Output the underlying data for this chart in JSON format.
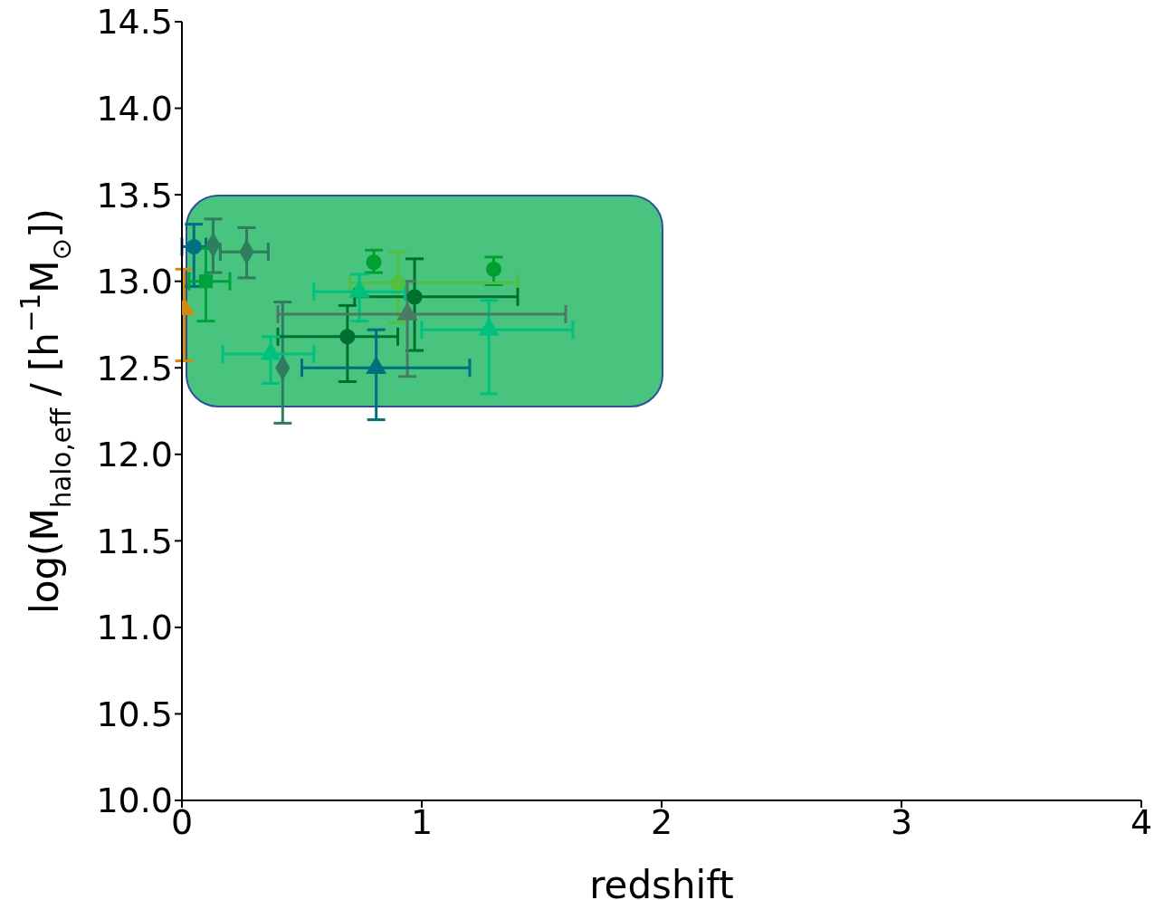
{
  "chart_data": {
    "type": "scatter",
    "xlabel": "redshift",
    "ylabel": "log(M$_{halo,eff}$ / [h$^{−1}$M$_{⊙}$])",
    "xlim": [
      0,
      4
    ],
    "xticks": [
      0,
      1,
      2,
      3,
      4
    ],
    "ylim": [
      10,
      14.5
    ],
    "yticks": [
      {
        "value": 10,
        "label": "10.0"
      },
      {
        "value": 10.5,
        "label": "10.5"
      },
      {
        "value": 11,
        "label": "11.0"
      },
      {
        "value": 11.5,
        "label": "11.5"
      },
      {
        "value": 12,
        "label": "12.0"
      },
      {
        "value": 12.5,
        "label": "12.5"
      },
      {
        "value": 13,
        "label": "13.0"
      },
      {
        "value": 13.5,
        "label": "13.5"
      },
      {
        "value": 14,
        "label": "14.0"
      },
      {
        "value": 14.5,
        "label": "14.5"
      }
    ],
    "series": [
      {
        "color": "#d08a10",
        "marker": "triangle",
        "x": [
          0.01
        ],
        "values": [
          12.84
        ],
        "errors": [
          [
            12.54,
            13.07
          ]
        ]
      },
      {
        "color": "#007080",
        "marker": "circle",
        "x": [
          0.05
        ],
        "values": [
          13.2
        ],
        "errors": [
          [
            12.97,
            13.33
          ]
        ],
        "xerrors": [
          [
            0.0,
            0.1
          ]
        ]
      },
      {
        "color": "#2e7d5e",
        "marker": "diamond",
        "x": [
          0.13,
          0.27,
          0.42
        ],
        "values": [
          13.21,
          13.17,
          12.5
        ],
        "errors": [
          [
            13.05,
            13.36
          ],
          [
            13.02,
            13.31
          ],
          [
            12.18,
            12.88
          ]
        ],
        "xerrors": [
          null,
          [
            0.16,
            0.36
          ],
          null
        ]
      },
      {
        "color": "#00a040",
        "marker": "square",
        "x": [
          0.1
        ],
        "values": [
          13.0
        ],
        "errors": [
          [
            12.77,
            13.19
          ]
        ],
        "xerrors": [
          [
            0.03,
            0.2
          ]
        ]
      },
      {
        "color": "#00a030",
        "marker": "circle",
        "x": [
          0.8,
          1.3
        ],
        "values": [
          13.11,
          13.07
        ],
        "errors": [
          [
            13.05,
            13.18
          ],
          [
            12.98,
            13.14
          ]
        ]
      },
      {
        "color": "#50c040",
        "marker": "circle",
        "x": [
          0.9
        ],
        "values": [
          12.99
        ],
        "errors": [
          [
            12.76,
            13.17
          ]
        ],
        "xerrors": [
          [
            0.7,
            1.4
          ]
        ]
      },
      {
        "color": "#007030",
        "marker": "circle",
        "x": [
          0.97,
          0.69
        ],
        "values": [
          12.91,
          12.68
        ],
        "errors": [
          [
            12.6,
            13.13
          ],
          [
            12.42,
            12.86
          ]
        ],
        "xerrors": [
          [
            0.72,
            1.4
          ],
          [
            0.4,
            0.9
          ]
        ]
      },
      {
        "color": "#00c080",
        "marker": "triangle",
        "x": [
          0.74,
          1.28,
          0.37
        ],
        "values": [
          12.94,
          12.72,
          12.58
        ],
        "errors": [
          [
            12.77,
            13.04
          ],
          [
            12.35,
            12.89
          ],
          [
            12.41,
            12.68
          ]
        ],
        "xerrors": [
          [
            0.55,
            0.93
          ],
          [
            1.0,
            1.63
          ],
          [
            0.17,
            0.55
          ]
        ]
      },
      {
        "color": "#4a7a66",
        "marker": "triangle",
        "x": [
          0.94
        ],
        "values": [
          12.81
        ],
        "errors": [
          [
            12.45,
            13.0
          ]
        ],
        "xerrors": [
          [
            0.4,
            1.6
          ]
        ]
      },
      {
        "color": "#007080",
        "marker": "triangle",
        "x": [
          0.81
        ],
        "values": [
          12.5
        ],
        "errors": [
          [
            12.2,
            12.72
          ]
        ],
        "xerrors": [
          [
            0.5,
            1.2
          ]
        ]
      }
    ]
  }
}
